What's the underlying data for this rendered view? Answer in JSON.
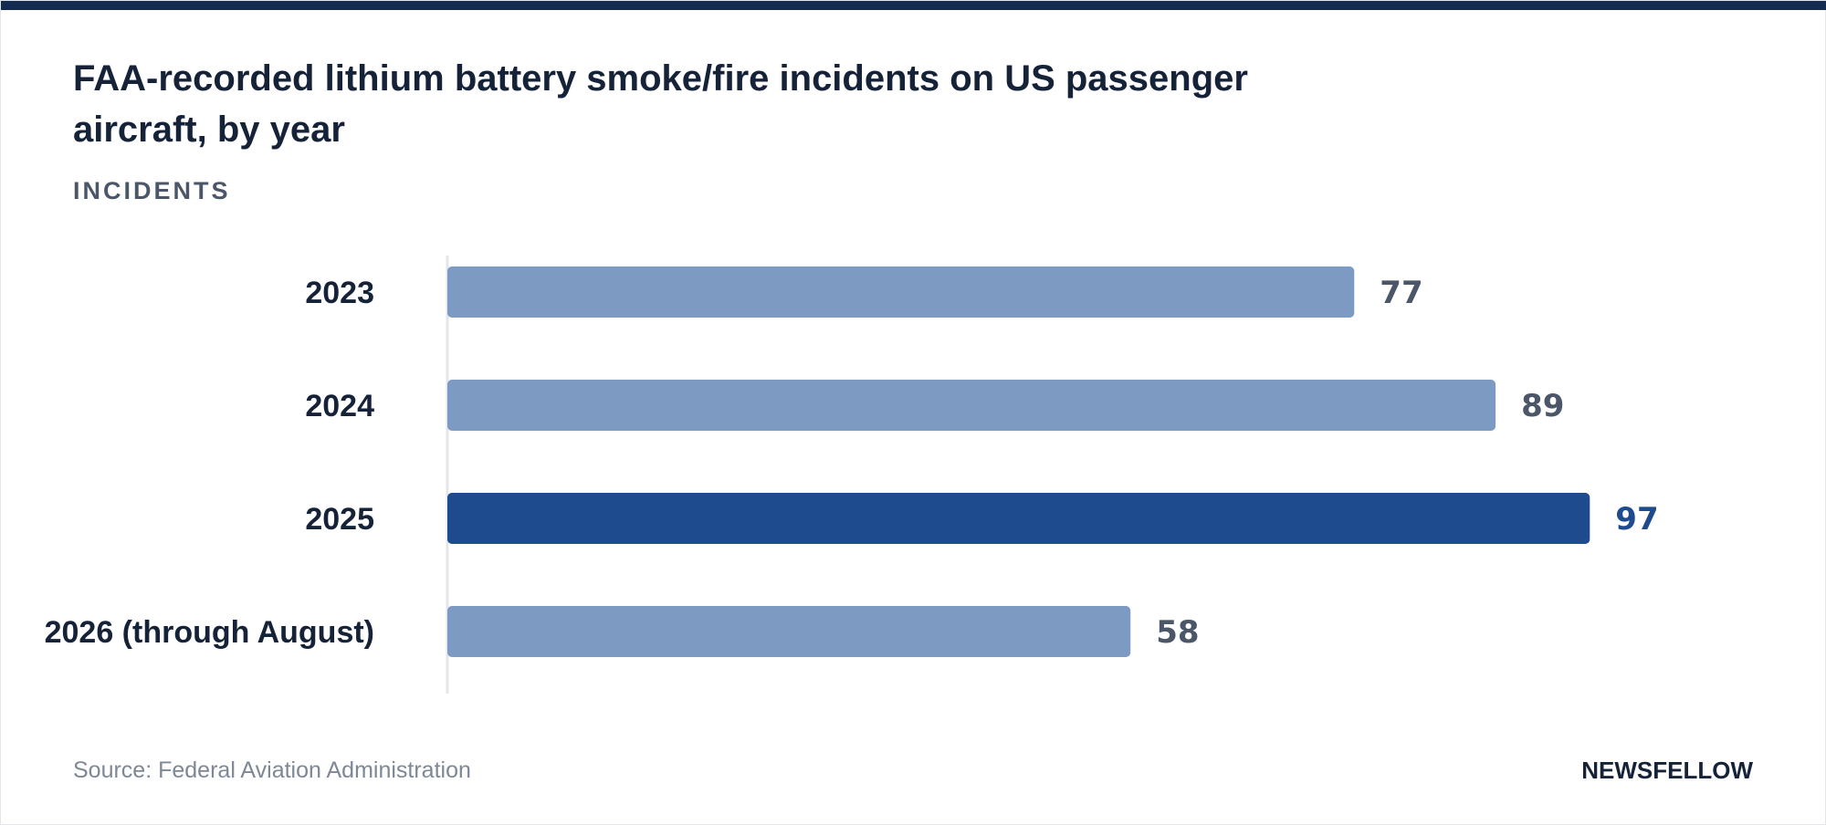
{
  "header": {
    "title": "FAA-recorded lithium battery smoke/fire incidents on US passenger aircraft, by year",
    "unit_label": "INCIDENTS"
  },
  "footer": {
    "source": "Source: Federal Aviation Administration",
    "brand": "NEWSFELLOW"
  },
  "colors": {
    "topbar": "#142c50",
    "bar_default": "#7d9ac3",
    "bar_highlight": "#1d4b8d",
    "value_default": "#4b5768",
    "value_highlight": "#1d4b8d",
    "axis_line": "#e3e6ea"
  },
  "chart_data": {
    "type": "bar",
    "orientation": "horizontal",
    "categories": [
      "2023",
      "2024",
      "2025",
      "2026 (through August)"
    ],
    "values": [
      77,
      89,
      97,
      58
    ],
    "highlight": "2025",
    "title": "FAA-recorded lithium battery smoke/fire incidents on US passenger aircraft, by year",
    "ylabel": "INCIDENTS",
    "xlim": [
      0,
      100
    ],
    "grid": false,
    "legend": "none"
  }
}
